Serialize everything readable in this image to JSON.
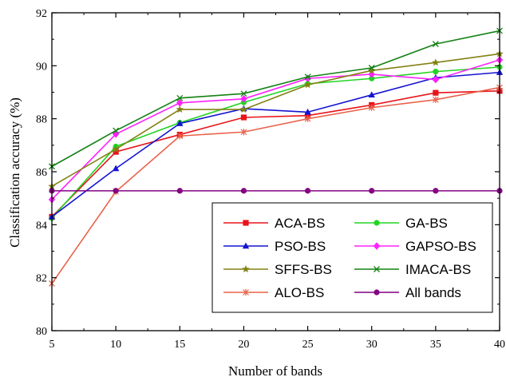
{
  "chart_data": {
    "type": "line",
    "xlabel": "Number of bands",
    "ylabel": "Classification accuracy (%)",
    "x": [
      5,
      10,
      15,
      20,
      25,
      30,
      35,
      40
    ],
    "xlim": [
      5,
      40
    ],
    "ylim": [
      80,
      92
    ],
    "xticks": [
      5,
      10,
      15,
      20,
      25,
      30,
      35,
      40
    ],
    "yticks": [
      80,
      82,
      84,
      86,
      88,
      90,
      92
    ],
    "grid": false,
    "legend_position": "bottom-right",
    "series": [
      {
        "name": "ACA-BS",
        "color": "#e8141b",
        "marker": "square",
        "values": [
          84.3,
          86.75,
          87.4,
          88.05,
          88.12,
          88.52,
          88.98,
          89.05
        ]
      },
      {
        "name": "GA-BS",
        "color": "#22d422",
        "marker": "circle",
        "values": [
          84.25,
          86.95,
          87.85,
          88.62,
          89.32,
          89.52,
          89.78,
          89.95
        ]
      },
      {
        "name": "PSO-BS",
        "color": "#1414d2",
        "marker": "triangle",
        "values": [
          84.3,
          86.12,
          87.82,
          88.38,
          88.25,
          88.9,
          89.55,
          89.75
        ]
      },
      {
        "name": "GAPSO-BS",
        "color": "#ff22ff",
        "marker": "diamond",
        "values": [
          84.95,
          87.42,
          88.6,
          88.75,
          89.52,
          89.68,
          89.48,
          90.22
        ]
      },
      {
        "name": "SFFS-BS",
        "color": "#828214",
        "marker": "star",
        "values": [
          85.45,
          86.85,
          88.35,
          88.35,
          89.28,
          89.82,
          90.12,
          90.45
        ]
      },
      {
        "name": "IMACA-BS",
        "color": "#148214",
        "marker": "x",
        "values": [
          86.2,
          87.55,
          88.78,
          88.95,
          89.58,
          89.92,
          90.82,
          91.32
        ]
      },
      {
        "name": "ALO-BS",
        "color": "#e8624a",
        "marker": "asterisk",
        "values": [
          81.78,
          85.25,
          87.35,
          87.5,
          88.0,
          88.42,
          88.72,
          89.18
        ]
      },
      {
        "name": "All bands",
        "color": "#820082",
        "marker": "circle",
        "values": [
          85.28,
          85.28,
          85.28,
          85.28,
          85.28,
          85.28,
          85.28,
          85.28
        ]
      }
    ]
  }
}
